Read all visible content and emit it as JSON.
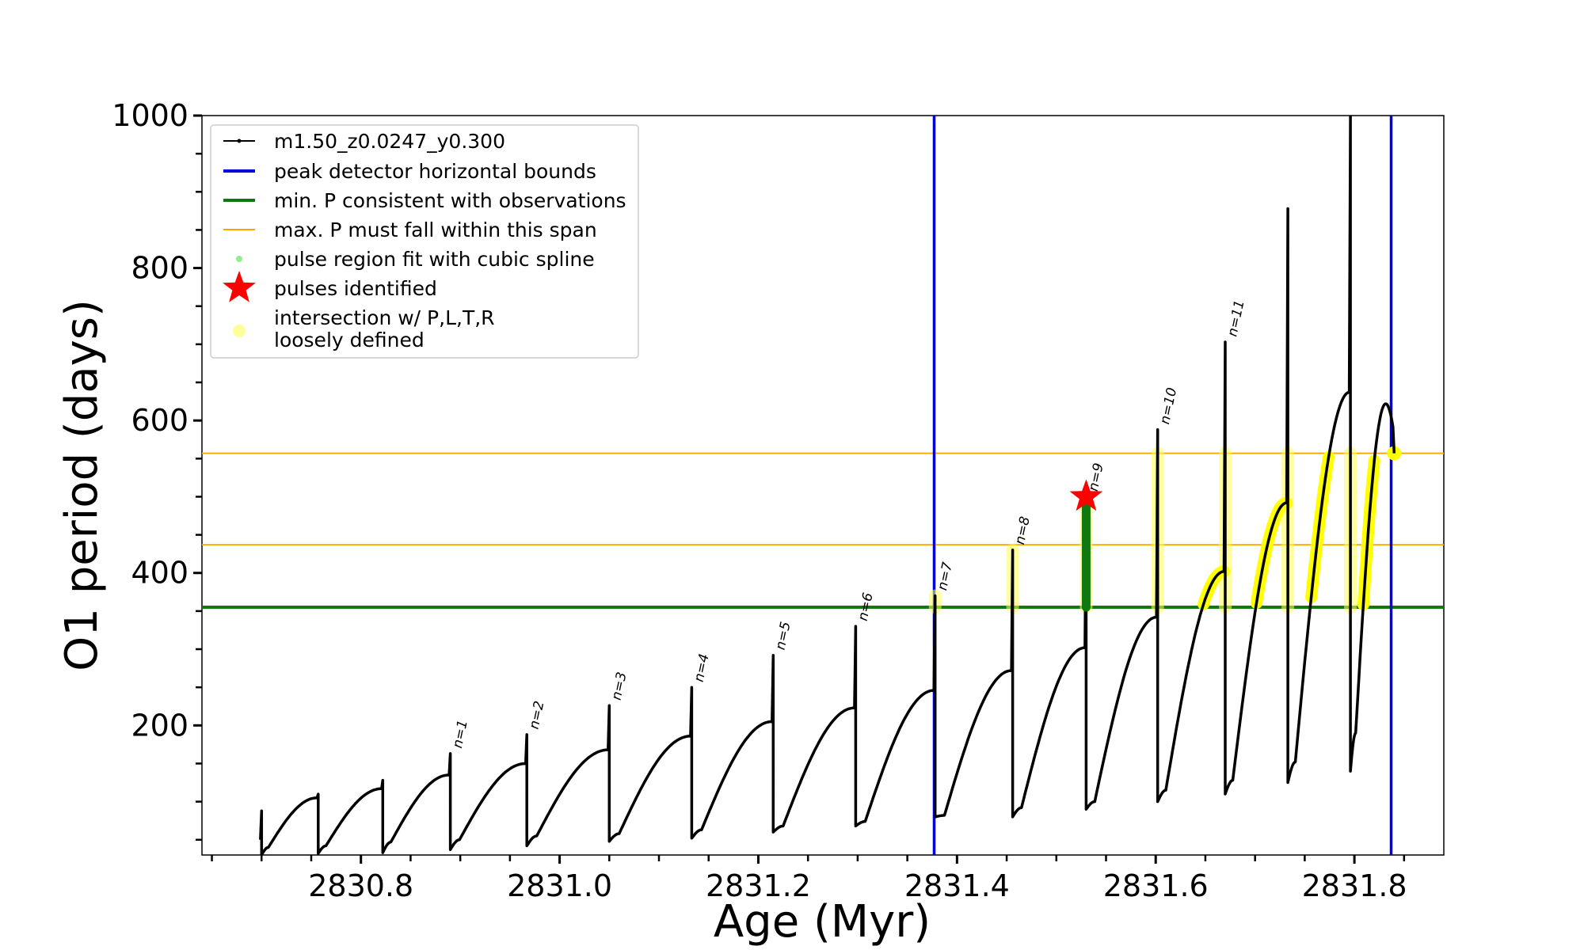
{
  "chart_data": {
    "type": "line",
    "xlabel": "Age (Myr)",
    "ylabel": "O1 period (days)",
    "xlim": [
      2830.64,
      2831.89
    ],
    "ylim": [
      30,
      1000
    ],
    "x_ticks": [
      2830.8,
      2831.0,
      2831.2,
      2831.4,
      2831.6,
      2831.8
    ],
    "x_tick_labels": [
      "2830.8",
      "2831.0",
      "2831.2",
      "2831.4",
      "2831.6",
      "2831.8"
    ],
    "y_ticks": [
      200,
      400,
      600,
      800,
      1000
    ],
    "y_tick_labels": [
      "200",
      "400",
      "600",
      "800",
      "1000"
    ],
    "grid": false,
    "legend_position": "top-left",
    "legend": [
      {
        "label": "m1.50_z0.0247_y0.300",
        "color": "#000000",
        "kind": "line-dot"
      },
      {
        "label": "peak detector horizontal bounds",
        "color": "#0000dd",
        "kind": "line"
      },
      {
        "label": "min. P consistent with observations",
        "color": "#117711",
        "kind": "line"
      },
      {
        "label": "max. P must fall within this span",
        "color": "#ffa500",
        "kind": "thin-line"
      },
      {
        "label": "pulse region fit with cubic spline",
        "color": "#90ee90",
        "kind": "dot"
      },
      {
        "label": "pulses identified",
        "color": "#ff0000",
        "kind": "star"
      },
      {
        "label": "intersection w/ P,L,T,R",
        "label2": "loosely defined",
        "color": "#ffff99",
        "kind": "circle"
      }
    ],
    "vertical_lines": [
      {
        "x": 2831.377,
        "color": "#0000dd"
      },
      {
        "x": 2831.837,
        "color": "#0000dd"
      }
    ],
    "horizontal_lines": [
      {
        "y": 355,
        "color": "#117711"
      },
      {
        "y": 437,
        "color": "#ffa500"
      },
      {
        "y": 557,
        "color": "#ffa500"
      }
    ],
    "series": [
      {
        "name": "m1.50_z0.0247_y0.300",
        "color": "#000000",
        "pulses": [
          {
            "start": 2830.7,
            "spike_max": 88,
            "spike_min": 30,
            "trough": 40,
            "end_val": 105
          },
          {
            "start": 2830.757,
            "spike_max": 110,
            "spike_min": 32,
            "trough": 42,
            "end_val": 117
          },
          {
            "start": 2830.822,
            "spike_max": 128,
            "spike_min": 33,
            "trough": 47,
            "end_val": 135
          },
          {
            "start": 2830.89,
            "spike_max": 163,
            "spike_min": 37,
            "trough": 50,
            "end_val": 150,
            "label": "n=1"
          },
          {
            "start": 2830.967,
            "spike_max": 188,
            "spike_min": 42,
            "trough": 55,
            "end_val": 168,
            "label": "n=2"
          },
          {
            "start": 2831.05,
            "spike_max": 226,
            "spike_min": 48,
            "trough": 58,
            "end_val": 186,
            "label": "n=3"
          },
          {
            "start": 2831.133,
            "spike_max": 250,
            "spike_min": 52,
            "trough": 63,
            "end_val": 205,
            "label": "n=4"
          },
          {
            "start": 2831.215,
            "spike_max": 292,
            "spike_min": 60,
            "trough": 68,
            "end_val": 223,
            "label": "n=5"
          },
          {
            "start": 2831.298,
            "spike_max": 330,
            "spike_min": 68,
            "trough": 74,
            "end_val": 246,
            "label": "n=6"
          },
          {
            "start": 2831.378,
            "spike_max": 370,
            "spike_min": 80,
            "trough": 82,
            "end_val": 272,
            "label": "n=7"
          },
          {
            "start": 2831.456,
            "spike_max": 430,
            "spike_min": 80,
            "trough": 92,
            "end_val": 302,
            "label": "n=8"
          },
          {
            "start": 2831.53,
            "spike_max": 500,
            "spike_min": 90,
            "trough": 100,
            "end_val": 342,
            "label": "n=9"
          },
          {
            "start": 2831.602,
            "spike_max": 588,
            "spike_min": 100,
            "trough": 115,
            "end_val": 402,
            "label": "n=10"
          },
          {
            "start": 2831.67,
            "spike_max": 703,
            "spike_min": 110,
            "trough": 128,
            "end_val": 492,
            "label": "n=11"
          },
          {
            "start": 2831.733,
            "spike_max": 878,
            "spike_min": 125,
            "trough": 152,
            "end_val": 637
          },
          {
            "start": 2831.796,
            "spike_max": 1000,
            "spike_min": 140,
            "trough": 190,
            "end_val": 622
          }
        ],
        "final_point": {
          "x": 2831.84,
          "y": 557
        }
      }
    ],
    "pulses_identified": [
      {
        "x": 2831.53,
        "y": 500
      }
    ],
    "spline_region": {
      "x": 2831.53,
      "y_from": 355,
      "y_to": 500
    }
  }
}
